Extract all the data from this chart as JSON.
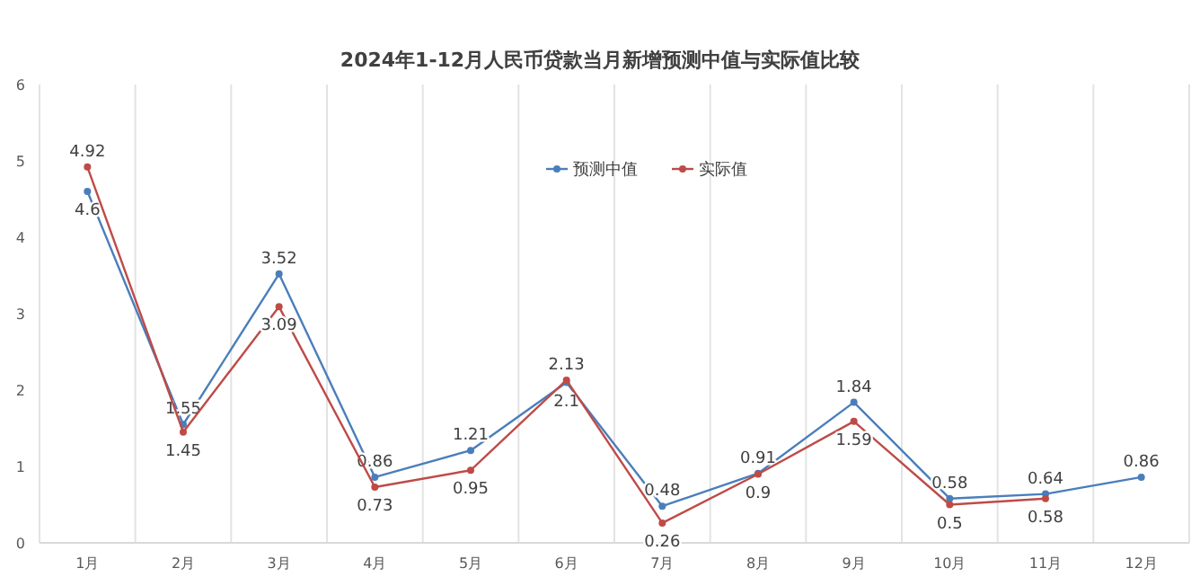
{
  "chart_data": {
    "type": "line",
    "title": "2024年1-12月人民币贷款当月新增预测中值与实际值比较",
    "categories": [
      "1月",
      "2月",
      "3月",
      "4月",
      "5月",
      "6月",
      "7月",
      "8月",
      "9月",
      "10月",
      "11月",
      "12月"
    ],
    "series": [
      {
        "name": "预测中值",
        "color": "#4a7ebb",
        "values": [
          4.6,
          1.55,
          3.52,
          0.86,
          1.21,
          2.1,
          0.48,
          0.91,
          1.84,
          0.58,
          0.64,
          0.86
        ]
      },
      {
        "name": "实际值",
        "color": "#be4b48",
        "values": [
          4.92,
          1.45,
          3.09,
          0.73,
          0.95,
          2.13,
          0.26,
          0.9,
          1.59,
          0.5,
          0.58,
          null
        ]
      }
    ],
    "ylim": [
      0,
      6
    ],
    "yticks": [
      0,
      1,
      2,
      3,
      4,
      5,
      6
    ],
    "grid": "x",
    "legend": "top",
    "marker": "circle",
    "line_style": "solid",
    "data_labels": true
  }
}
